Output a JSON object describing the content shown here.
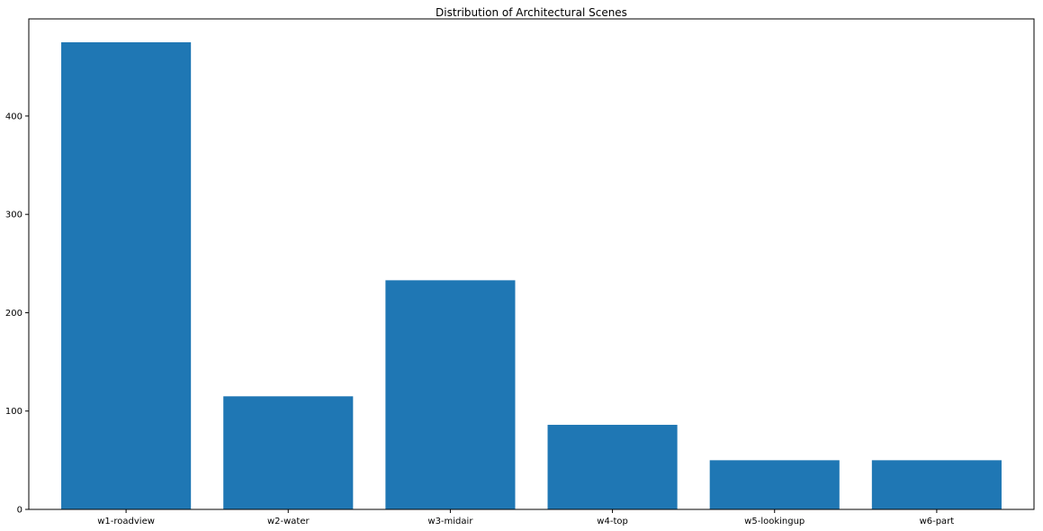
{
  "chart_data": {
    "type": "bar",
    "title": "Distribution of Architectural Scenes",
    "xlabel": "",
    "ylabel": "",
    "categories": [
      "w1-roadview",
      "w2-water",
      "w3-midair",
      "w4-top",
      "w5-lookingup",
      "w6-part"
    ],
    "values": [
      475,
      115,
      233,
      86,
      50,
      50
    ],
    "yticks": [
      0,
      100,
      200,
      300,
      400
    ],
    "ytick_labels": [
      "0",
      "100",
      "200",
      "300",
      "400"
    ],
    "ylim": [
      0,
      498.75
    ],
    "grid": false,
    "legend": "none",
    "colors": {
      "bar": "#1f77b4",
      "axis": "#000000",
      "background": "#ffffff"
    }
  }
}
